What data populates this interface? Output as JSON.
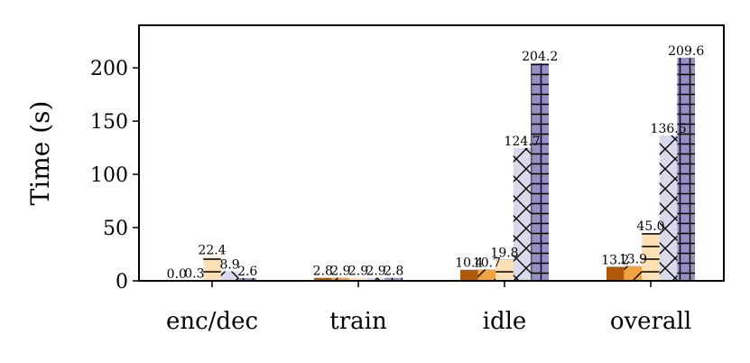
{
  "chart_data": {
    "type": "bar",
    "categories": [
      "enc/dec",
      "train",
      "idle",
      "overall"
    ],
    "ylabel": "Time (s)",
    "xlabel": "",
    "ylim": [
      0,
      240
    ],
    "yticks": [
      0,
      50,
      100,
      150,
      200
    ],
    "grid": false,
    "legend": "none",
    "series": [
      {
        "color": "#b35806",
        "pattern": "none",
        "values": [
          0.0,
          2.8,
          10.4,
          13.2
        ],
        "labels": [
          "0.0",
          "2.8",
          "10.4",
          "13.2"
        ]
      },
      {
        "color": "#f1a340",
        "pattern": "diagonal",
        "values": [
          0.3,
          2.9,
          10.7,
          13.9
        ],
        "labels": [
          "0.3",
          "2.9",
          "10.7",
          "13.9"
        ]
      },
      {
        "color": "#fee0b6",
        "pattern": "horizontal",
        "values": [
          22.4,
          2.9,
          19.8,
          45.0
        ],
        "labels": [
          "22.4",
          "2.9",
          "19.8",
          "45.0"
        ]
      },
      {
        "color": "#d8daeb",
        "pattern": "crosshatch",
        "values": [
          8.9,
          2.9,
          124.7,
          136.5
        ],
        "labels": [
          "8.9",
          "2.9",
          "124.7",
          "136.5"
        ]
      },
      {
        "color": "#998ec3",
        "pattern": "grid",
        "values": [
          2.6,
          2.8,
          204.2,
          209.6
        ],
        "labels": [
          "2.6",
          "2.8",
          "204.2",
          "209.6"
        ]
      }
    ]
  }
}
